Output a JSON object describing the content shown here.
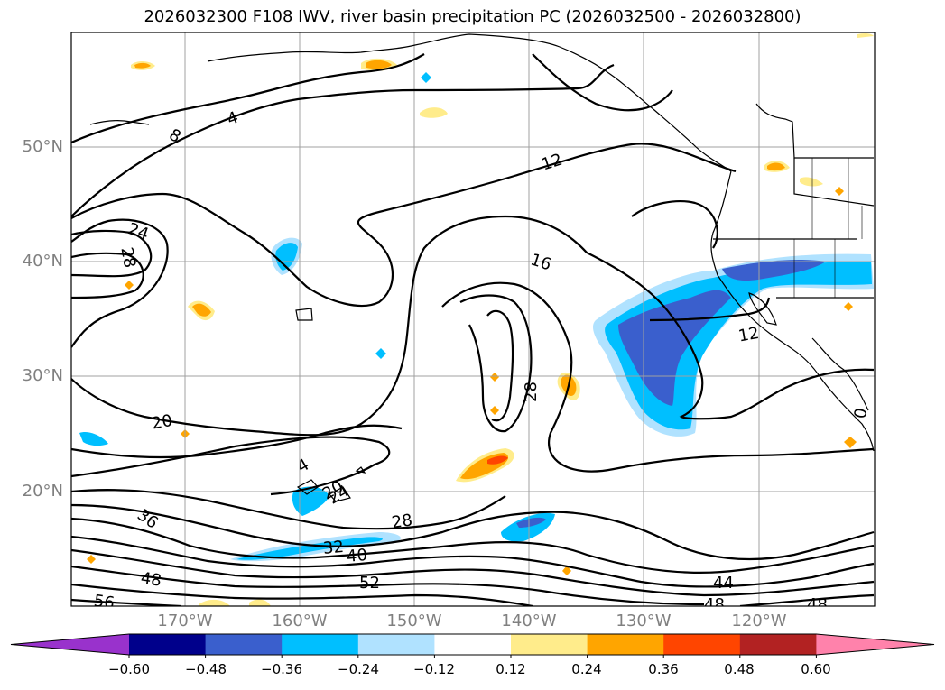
{
  "title": "2026032300 F108 IWV, river basin precipitation PC (2026032500 - 2026032800)",
  "map": {
    "lat_labels": [
      "50°N",
      "40°N",
      "30°N",
      "20°N"
    ],
    "lon_labels": [
      "170°W",
      "160°W",
      "150°W",
      "140°W",
      "130°W",
      "120°W"
    ],
    "contour_labels": [
      "4",
      "8",
      "12",
      "16",
      "20",
      "24",
      "28",
      "28",
      "12",
      "20",
      "24",
      "28",
      "32",
      "36",
      "40",
      "44",
      "48",
      "48",
      "48",
      "52",
      "56",
      "4",
      "0"
    ]
  },
  "colorbar": {
    "ticks": [
      "−0.60",
      "−0.48",
      "−0.36",
      "−0.24",
      "−0.12",
      "0.12",
      "0.24",
      "0.36",
      "0.48",
      "0.60"
    ],
    "colors": [
      "#9932cc",
      "#00008b",
      "#3a5fcd",
      "#00bfff",
      "#b0e2ff",
      "#ffffff",
      "#ffec8b",
      "#ffa500",
      "#ff4500",
      "#b22222",
      "#ff82ab"
    ]
  }
}
